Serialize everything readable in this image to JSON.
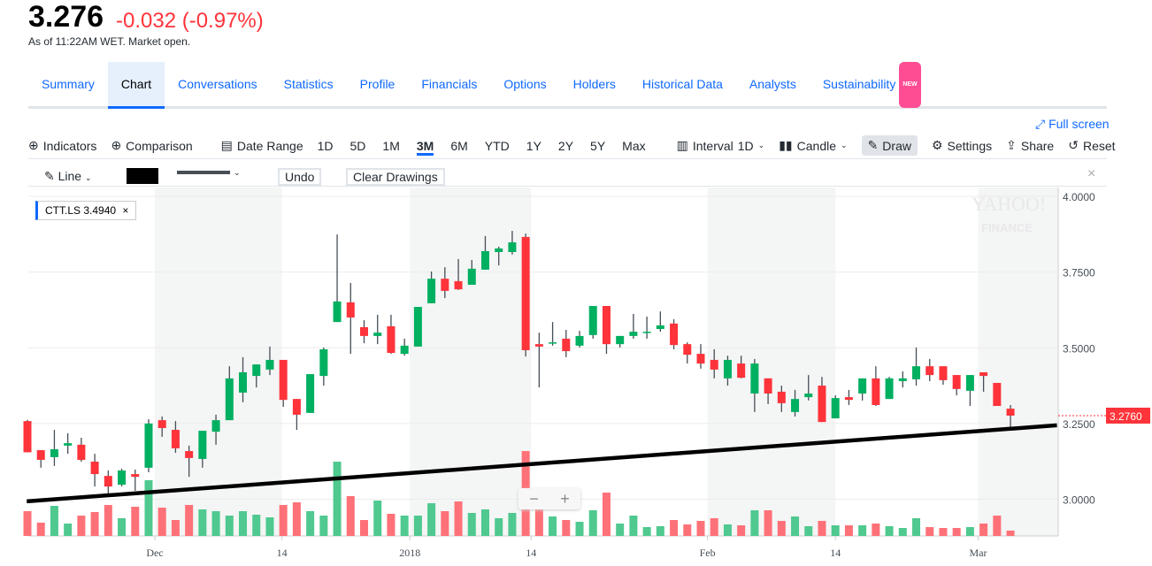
{
  "quote": {
    "price": "3.276",
    "change": "-0.032 (-0.97%)",
    "as_of": "As of 11:22AM WET. Market open."
  },
  "tabs": [
    {
      "label": "Summary"
    },
    {
      "label": "Chart",
      "selected": true
    },
    {
      "label": "Conversations"
    },
    {
      "label": "Statistics"
    },
    {
      "label": "Profile"
    },
    {
      "label": "Financials"
    },
    {
      "label": "Options"
    },
    {
      "label": "Holders"
    },
    {
      "label": "Historical Data"
    },
    {
      "label": "Analysts"
    },
    {
      "label": "Sustainability",
      "badge": "NEW"
    }
  ],
  "toolbar": {
    "full_screen": "Full screen",
    "indicators": "Indicators",
    "comparison": "Comparison",
    "date_range": "Date Range",
    "ranges": [
      "1D",
      "5D",
      "1M",
      "3M",
      "6M",
      "YTD",
      "1Y",
      "2Y",
      "5Y",
      "Max"
    ],
    "selected_range": "3M",
    "interval_label": "Interval",
    "interval": "1D",
    "chart_type": "Candle",
    "draw": "Draw",
    "settings": "Settings",
    "share": "Share",
    "reset": "Reset"
  },
  "draw_toolbar": {
    "tool": "Line",
    "color": "#000000",
    "undo": "Undo",
    "clear": "Clear Drawings"
  },
  "legend": {
    "symbol": "CTT.LS",
    "value": "3.4940"
  },
  "watermark": "YAHOO! FINANCE",
  "colors": {
    "up": "#00b061",
    "down": "#ff333a",
    "accent": "#0f69ff"
  },
  "chart_data": {
    "type": "candlestick",
    "ylim": [
      2.88,
      4.03
    ],
    "yticks": [
      "4.0000",
      "3.7500",
      "3.5000",
      "3.2500",
      "3.0000"
    ],
    "ytick_values": [
      4.0,
      3.75,
      3.5,
      3.25,
      3.0
    ],
    "last_price_label": "3.2760",
    "last_price": 3.276,
    "xticks": [
      {
        "label": "Dec",
        "index": 9.46
      },
      {
        "label": "14",
        "index": 18.9
      },
      {
        "label": "2018",
        "index": 28.4
      },
      {
        "label": "14",
        "index": 37.4
      },
      {
        "label": "Feb",
        "index": 50.5
      },
      {
        "label": "14",
        "index": 60
      },
      {
        "label": "Mar",
        "index": 70.6
      }
    ],
    "shaded_index_ranges": [
      [
        9.46,
        18.9
      ],
      [
        28.4,
        37.4
      ],
      [
        50.5,
        60
      ],
      [
        70.6,
        76.5
      ]
    ],
    "trendline": {
      "start_index": -0.05,
      "start_price": 2.993,
      "end_index": 76.45,
      "end_price": 3.244
    },
    "ohlc": [
      [
        3.258,
        3.262,
        3.155,
        3.155
      ],
      [
        3.162,
        3.162,
        3.104,
        3.13
      ],
      [
        3.139,
        3.229,
        3.11,
        3.165
      ],
      [
        3.177,
        3.218,
        3.15,
        3.185
      ],
      [
        3.18,
        3.203,
        3.124,
        3.13
      ],
      [
        3.124,
        3.15,
        3.042,
        3.083
      ],
      [
        3.077,
        3.095,
        3.019,
        3.042
      ],
      [
        3.048,
        3.101,
        3.042,
        3.095
      ],
      [
        3.083,
        3.098,
        3.028,
        3.074
      ],
      [
        3.104,
        3.264,
        3.089,
        3.25
      ],
      [
        3.261,
        3.273,
        3.206,
        3.235
      ],
      [
        3.229,
        3.258,
        3.153,
        3.168
      ],
      [
        3.159,
        3.177,
        3.074,
        3.136
      ],
      [
        3.133,
        3.226,
        3.104,
        3.226
      ],
      [
        3.223,
        3.279,
        3.18,
        3.261
      ],
      [
        3.261,
        3.439,
        3.261,
        3.399
      ],
      [
        3.352,
        3.469,
        3.32,
        3.419
      ],
      [
        3.407,
        3.445,
        3.369,
        3.445
      ],
      [
        3.428,
        3.504,
        3.41,
        3.46
      ],
      [
        3.46,
        3.46,
        3.305,
        3.328
      ],
      [
        3.331,
        3.331,
        3.229,
        3.279
      ],
      [
        3.285,
        3.413,
        3.285,
        3.413
      ],
      [
        3.407,
        3.501,
        3.375,
        3.495
      ],
      [
        3.585,
        3.874,
        3.585,
        3.653
      ],
      [
        3.65,
        3.714,
        3.48,
        3.6
      ],
      [
        3.568,
        3.591,
        3.515,
        3.539
      ],
      [
        3.539,
        3.609,
        3.512,
        3.55
      ],
      [
        3.571,
        3.609,
        3.48,
        3.483
      ],
      [
        3.48,
        3.53,
        3.474,
        3.507
      ],
      [
        3.504,
        3.635,
        3.504,
        3.635
      ],
      [
        3.647,
        3.752,
        3.647,
        3.728
      ],
      [
        3.728,
        3.766,
        3.664,
        3.688
      ],
      [
        3.72,
        3.793,
        3.691,
        3.693
      ],
      [
        3.708,
        3.79,
        3.708,
        3.761
      ],
      [
        3.758,
        3.869,
        3.758,
        3.819
      ],
      [
        3.816,
        3.834,
        3.772,
        3.828
      ],
      [
        3.816,
        3.886,
        3.808,
        3.848
      ],
      [
        3.866,
        3.877,
        3.471,
        3.492
      ],
      [
        3.512,
        3.55,
        3.369,
        3.504
      ],
      [
        3.515,
        3.585,
        3.507,
        3.518
      ],
      [
        3.53,
        3.559,
        3.469,
        3.489
      ],
      [
        3.507,
        3.556,
        3.501,
        3.539
      ],
      [
        3.542,
        3.638,
        3.53,
        3.638
      ],
      [
        3.638,
        3.638,
        3.48,
        3.512
      ],
      [
        3.512,
        3.539,
        3.501,
        3.539
      ],
      [
        3.539,
        3.612,
        3.53,
        3.553
      ],
      [
        3.55,
        3.603,
        3.53,
        3.553
      ],
      [
        3.562,
        3.62,
        3.553,
        3.574
      ],
      [
        3.58,
        3.594,
        3.495,
        3.509
      ],
      [
        3.512,
        3.518,
        3.448,
        3.477
      ],
      [
        3.48,
        3.512,
        3.431,
        3.448
      ],
      [
        3.46,
        3.495,
        3.399,
        3.428
      ],
      [
        3.399,
        3.474,
        3.375,
        3.46
      ],
      [
        3.448,
        3.474,
        3.399,
        3.401
      ],
      [
        3.349,
        3.463,
        3.288,
        3.448
      ],
      [
        3.399,
        3.399,
        3.314,
        3.349
      ],
      [
        3.355,
        3.375,
        3.288,
        3.317
      ],
      [
        3.288,
        3.361,
        3.273,
        3.331
      ],
      [
        3.337,
        3.41,
        3.326,
        3.349
      ],
      [
        3.375,
        3.404,
        3.255,
        3.255
      ],
      [
        3.267,
        3.343,
        3.267,
        3.334
      ],
      [
        3.337,
        3.361,
        3.311,
        3.328
      ],
      [
        3.349,
        3.399,
        3.326,
        3.399
      ],
      [
        3.399,
        3.439,
        3.308,
        3.311
      ],
      [
        3.331,
        3.404,
        3.331,
        3.399
      ],
      [
        3.39,
        3.422,
        3.369,
        3.399
      ],
      [
        3.396,
        3.501,
        3.375,
        3.439
      ],
      [
        3.439,
        3.463,
        3.39,
        3.41
      ],
      [
        3.439,
        3.439,
        3.378,
        3.393
      ],
      [
        3.41,
        3.41,
        3.343,
        3.364
      ],
      [
        3.358,
        3.41,
        3.308,
        3.41
      ],
      [
        3.419,
        3.419,
        3.355,
        3.407
      ],
      [
        3.384,
        3.384,
        3.308,
        3.308
      ],
      [
        3.299,
        3.311,
        3.238,
        3.276
      ]
    ],
    "volume_relative": [
      28,
      15,
      34,
      14,
      23,
      27,
      35,
      20,
      33,
      63,
      32,
      18,
      35,
      30,
      28,
      23,
      28,
      24,
      21,
      35,
      38,
      28,
      23,
      84,
      45,
      18,
      40,
      25,
      23,
      23,
      37,
      28,
      39,
      26,
      30,
      20,
      26,
      96,
      31,
      22,
      18,
      16,
      29,
      49,
      14,
      23,
      10,
      11,
      18,
      13,
      17,
      20,
      13,
      12,
      29,
      29,
      17,
      22,
      11,
      17,
      12,
      12,
      12,
      14,
      11,
      9,
      20,
      10,
      9,
      9,
      10,
      14,
      23,
      6
    ]
  }
}
